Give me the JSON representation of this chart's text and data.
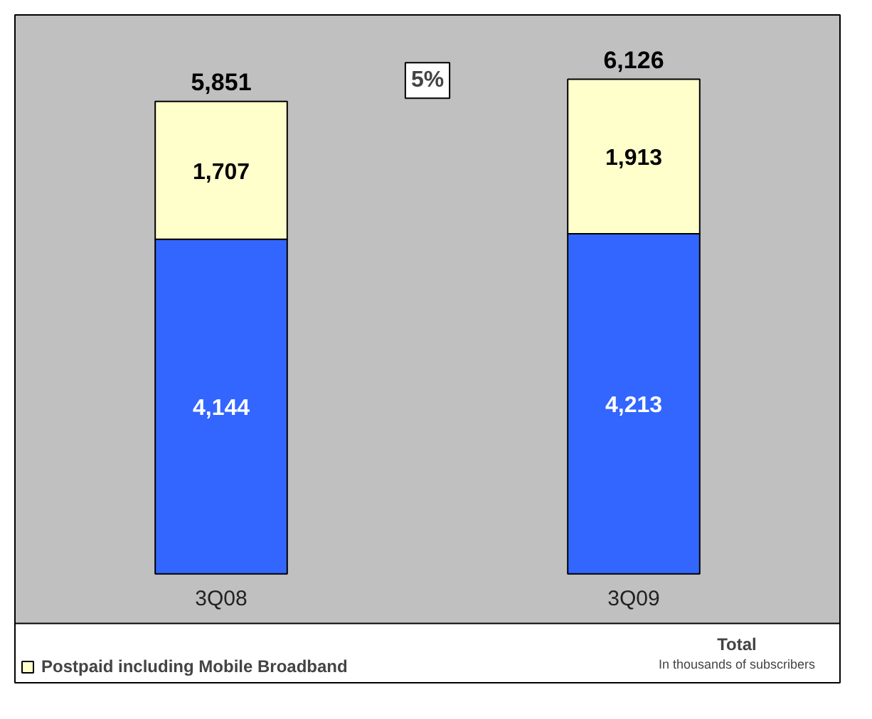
{
  "chart_data": {
    "type": "bar",
    "stacked": true,
    "categories": [
      "3Q08",
      "3Q09"
    ],
    "series": [
      {
        "color": "#3366ff",
        "values": [
          4144,
          4213
        ],
        "value_labels": [
          "4,144",
          "4,213"
        ]
      },
      {
        "name": "Postpaid including Mobile Broadband",
        "color": "#ffffcc",
        "values": [
          1707,
          1913
        ],
        "value_labels": [
          "1,707",
          "1,913"
        ]
      }
    ],
    "totals": [
      "5,851",
      "6,126"
    ],
    "legend": "bottom",
    "grid": false,
    "annotations": [
      "5%",
      "Total",
      "In thousands of subscribers"
    ]
  }
}
